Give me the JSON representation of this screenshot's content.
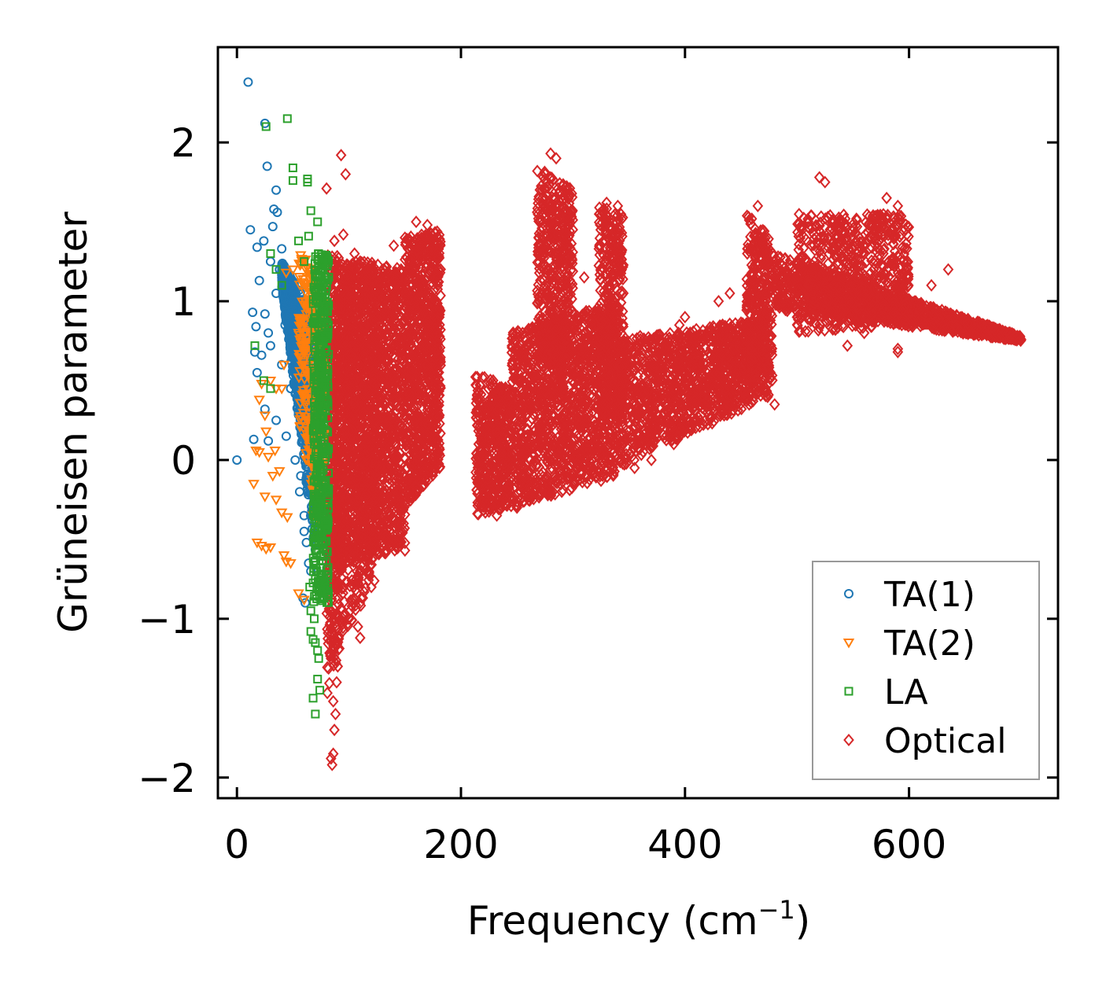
{
  "chart_data": {
    "type": "scatter",
    "xlabel": "Frequency (cm",
    "xlabel_sup": "−1",
    "xlabel_suffix": ")",
    "ylabel": "Grüneisen parameter",
    "xlim": [
      -17,
      733
    ],
    "ylim": [
      -2.13,
      2.6
    ],
    "xticks": [
      0,
      200,
      400,
      600
    ],
    "xtick_labels": [
      "0",
      "200",
      "400",
      "600"
    ],
    "yticks": [
      -2,
      -1,
      0,
      1,
      2
    ],
    "ytick_labels": [
      "−2",
      "−1",
      "0",
      "1",
      "2"
    ],
    "grid": false,
    "legend_position": "lower-right",
    "series": [
      {
        "name": "TA(1)",
        "color": "#1f77b4",
        "marker": "circle",
        "points": [
          [
            0,
            0
          ],
          [
            10,
            2.38
          ],
          [
            25,
            2.12
          ],
          [
            27,
            1.85
          ],
          [
            35,
            1.7
          ],
          [
            33,
            1.58
          ],
          [
            36,
            1.56
          ],
          [
            12,
            1.45
          ],
          [
            32,
            1.47
          ],
          [
            24,
            1.38
          ],
          [
            18,
            1.34
          ],
          [
            40,
            1.33
          ],
          [
            20,
            1.13
          ],
          [
            30,
            1.25
          ],
          [
            38,
            1.2
          ],
          [
            35,
            1.05
          ],
          [
            42,
            1.1
          ],
          [
            14,
            0.93
          ],
          [
            25,
            0.92
          ],
          [
            17,
            0.84
          ],
          [
            28,
            0.8
          ],
          [
            16,
            0.68
          ],
          [
            30,
            0.72
          ],
          [
            40,
            0.6
          ],
          [
            18,
            0.55
          ],
          [
            22,
            0.66
          ],
          [
            25,
            0.32
          ],
          [
            15,
            0.13
          ],
          [
            28,
            0.12
          ],
          [
            35,
            0.25
          ],
          [
            48,
            0.45
          ],
          [
            45,
            0.9
          ],
          [
            50,
            1.0
          ],
          [
            55,
            0.7
          ],
          [
            58,
            0.3
          ],
          [
            52,
            0.0
          ],
          [
            56,
            -0.2
          ],
          [
            60,
            -0.45
          ],
          [
            62,
            -0.52
          ],
          [
            64,
            -0.65
          ],
          [
            59,
            -0.87
          ],
          [
            61,
            -0.9
          ],
          [
            66,
            -0.7
          ],
          [
            43,
            0.85
          ],
          [
            47,
            1.1
          ],
          [
            53,
            0.55
          ],
          [
            57,
            -0.1
          ],
          [
            60,
            -0.35
          ],
          [
            44,
            0.15
          ]
        ],
        "band": {
          "x_min": 40,
          "x_max": 70,
          "y_low_start": 1.1,
          "y_low_end": -0.6,
          "y_high_start": 1.25,
          "y_high_end": 0.9,
          "count": 900
        }
      },
      {
        "name": "TA(2)",
        "color": "#ff7f0e",
        "marker": "triangle-down",
        "points": [
          [
            18,
            -0.52
          ],
          [
            22,
            -0.54
          ],
          [
            26,
            -0.56
          ],
          [
            30,
            -0.55
          ],
          [
            42,
            -0.6
          ],
          [
            44,
            -0.64
          ],
          [
            48,
            -0.65
          ],
          [
            55,
            -0.84
          ],
          [
            60,
            -0.88
          ],
          [
            15,
            -0.15
          ],
          [
            25,
            -0.23
          ],
          [
            28,
            0.02
          ],
          [
            32,
            -0.1
          ],
          [
            35,
            -0.25
          ],
          [
            40,
            -0.33
          ],
          [
            45,
            -0.36
          ],
          [
            38,
            -0.07
          ],
          [
            17,
            0.06
          ],
          [
            20,
            0.38
          ],
          [
            22,
            0.48
          ],
          [
            25,
            0.28
          ],
          [
            30,
            0.5
          ],
          [
            35,
            0.45
          ],
          [
            40,
            0.45
          ],
          [
            42,
            0.6
          ],
          [
            44,
            1.18
          ],
          [
            50,
            1.2
          ],
          [
            58,
            1.12
          ],
          [
            62,
            0.95
          ],
          [
            20,
            0.05
          ],
          [
            26,
            0.18
          ],
          [
            34,
            0.06
          ],
          [
            68,
            -0.35
          ],
          [
            72,
            -0.1
          ],
          [
            75,
            0.3
          ],
          [
            66,
            0.0
          ],
          [
            70,
            0.6
          ]
        ],
        "band": {
          "x_min": 55,
          "x_max": 78,
          "y_low_start": 0.2,
          "y_low_end": -0.5,
          "y_high_start": 1.4,
          "y_high_end": 1.0,
          "count": 300
        }
      },
      {
        "name": "LA",
        "color": "#2ca02c",
        "marker": "square",
        "points": [
          [
            26,
            2.1
          ],
          [
            45,
            2.15
          ],
          [
            50,
            1.84
          ],
          [
            50,
            1.76
          ],
          [
            63,
            1.77
          ],
          [
            63,
            1.75
          ],
          [
            66,
            1.57
          ],
          [
            64,
            1.41
          ],
          [
            72,
            1.5
          ],
          [
            30,
            1.3
          ],
          [
            35,
            1.2
          ],
          [
            40,
            1.1
          ],
          [
            55,
            1.38
          ],
          [
            60,
            1.25
          ],
          [
            72,
            -1.2
          ],
          [
            68,
            -1.13
          ],
          [
            66,
            -1.08
          ],
          [
            66,
            -0.95
          ],
          [
            70,
            -1.15
          ],
          [
            68,
            -1.5
          ],
          [
            72,
            -1.38
          ],
          [
            74,
            -1.45
          ],
          [
            73,
            -1.25
          ],
          [
            70,
            -1.6
          ],
          [
            69,
            -1.0
          ],
          [
            16,
            0.72
          ],
          [
            24,
            0.5
          ],
          [
            30,
            0.45
          ],
          [
            65,
            -0.8
          ],
          [
            70,
            -0.75
          ],
          [
            75,
            -0.6
          ]
        ],
        "band": {
          "x_min": 68,
          "x_max": 82,
          "y_low_start": -0.9,
          "y_low_end": -0.9,
          "y_high_start": 1.3,
          "y_high_end": 1.3,
          "count": 500
        }
      },
      {
        "name": "Optical",
        "color": "#d62728",
        "marker": "diamond",
        "points": [
          [
            80,
            1.71
          ],
          [
            93,
            1.92
          ],
          [
            97,
            1.8
          ],
          [
            95,
            1.42
          ],
          [
            87,
            1.38
          ],
          [
            84,
            -1.88
          ],
          [
            85,
            -1.92
          ],
          [
            86,
            -1.85
          ],
          [
            87,
            -1.7
          ],
          [
            88,
            -1.6
          ],
          [
            86,
            -1.52
          ],
          [
            89,
            -1.4
          ],
          [
            90,
            -1.3
          ],
          [
            84,
            -1.25
          ],
          [
            88,
            -1.15
          ],
          [
            100,
            -1.0
          ],
          [
            110,
            -1.12
          ],
          [
            108,
            -1.05
          ],
          [
            120,
            -0.8
          ],
          [
            150,
            -0.57
          ],
          [
            140,
            -0.5
          ],
          [
            232,
            -0.35
          ],
          [
            250,
            -0.3
          ],
          [
            265,
            -0.15
          ],
          [
            282,
            -0.2
          ],
          [
            290,
            -0.2
          ],
          [
            300,
            -0.08
          ],
          [
            330,
            -0.06
          ],
          [
            355,
            -0.05
          ],
          [
            370,
            0.0
          ],
          [
            390,
            0.1
          ],
          [
            440,
            0.35
          ],
          [
            480,
            0.35
          ],
          [
            280,
            1.93
          ],
          [
            285,
            1.9
          ],
          [
            295,
            1.6
          ],
          [
            330,
            1.62
          ],
          [
            340,
            1.6
          ],
          [
            465,
            1.6
          ],
          [
            520,
            1.78
          ],
          [
            525,
            1.75
          ],
          [
            580,
            1.65
          ],
          [
            590,
            1.6
          ],
          [
            635,
            1.2
          ],
          [
            620,
            1.1
          ],
          [
            700,
            0.76
          ],
          [
            690,
            0.8
          ],
          [
            670,
            0.85
          ],
          [
            545,
            0.72
          ],
          [
            560,
            0.8
          ],
          [
            590,
            0.7
          ],
          [
            590,
            0.68
          ],
          [
            500,
            1.15
          ],
          [
            505,
            1.2
          ],
          [
            500,
            0.9
          ],
          [
            255,
            0.8
          ],
          [
            280,
            0.6
          ],
          [
            310,
            1.15
          ],
          [
            400,
            0.9
          ],
          [
            430,
            1.0
          ],
          [
            440,
            1.05
          ],
          [
            415,
            0.4
          ],
          [
            395,
            0.85
          ],
          [
            360,
            0.78
          ],
          [
            180,
            1.2
          ],
          [
            170,
            1.48
          ],
          [
            165,
            1.35
          ],
          [
            160,
            1.5
          ],
          [
            150,
            1.4
          ],
          [
            140,
            1.35
          ],
          [
            130,
            1.0
          ],
          [
            120,
            1.2
          ],
          [
            110,
            1.25
          ],
          [
            105,
            1.3
          ]
        ],
        "bands": [
          {
            "x_min": 80,
            "x_max": 150,
            "y_low_start": -0.7,
            "y_low_end": -0.55,
            "y_high_start": 1.3,
            "y_high_end": 1.2,
            "count": 1800
          },
          {
            "x_min": 80,
            "x_max": 95,
            "y_low_start": -1.5,
            "y_low_end": -1.1,
            "y_high_start": 1.0,
            "y_high_end": 1.1,
            "count": 350
          },
          {
            "x_min": 95,
            "x_max": 125,
            "y_low_start": -1.1,
            "y_low_end": -0.75,
            "y_high_start": 1.25,
            "y_high_end": 1.2,
            "count": 500
          },
          {
            "x_min": 150,
            "x_max": 182,
            "y_low_start": -0.3,
            "y_low_end": -0.05,
            "y_high_start": 1.4,
            "y_high_end": 1.45,
            "count": 900
          },
          {
            "x_min": 213,
            "x_max": 245,
            "y_low_start": -0.35,
            "y_low_end": -0.3,
            "y_high_start": 0.55,
            "y_high_end": 0.45,
            "count": 450
          },
          {
            "x_min": 245,
            "x_max": 340,
            "y_low_start": -0.3,
            "y_low_end": -0.1,
            "y_high_start": 0.8,
            "y_high_end": 1.0,
            "count": 1400
          },
          {
            "x_min": 268,
            "x_max": 300,
            "y_low_start": 0.6,
            "y_low_end": 0.6,
            "y_high_start": 1.85,
            "y_high_end": 1.7,
            "count": 500
          },
          {
            "x_min": 323,
            "x_max": 345,
            "y_low_start": 0.3,
            "y_low_end": 0.3,
            "y_high_start": 1.6,
            "y_high_end": 1.55,
            "count": 350
          },
          {
            "x_min": 340,
            "x_max": 475,
            "y_low_start": -0.05,
            "y_low_end": 0.4,
            "y_high_start": 0.75,
            "y_high_end": 0.9,
            "count": 1400
          },
          {
            "x_min": 455,
            "x_max": 478,
            "y_low_start": 0.5,
            "y_low_end": 0.5,
            "y_high_start": 1.55,
            "y_high_end": 1.4,
            "count": 300
          },
          {
            "x_min": 478,
            "x_max": 700,
            "y_low_start": 0.95,
            "y_low_end": 0.75,
            "y_high_start": 1.3,
            "y_high_end": 0.78,
            "count": 1200
          },
          {
            "x_min": 500,
            "x_max": 600,
            "y_low_start": 0.8,
            "y_low_end": 0.85,
            "y_high_start": 1.55,
            "y_high_end": 1.55,
            "count": 700
          }
        ]
      }
    ]
  }
}
